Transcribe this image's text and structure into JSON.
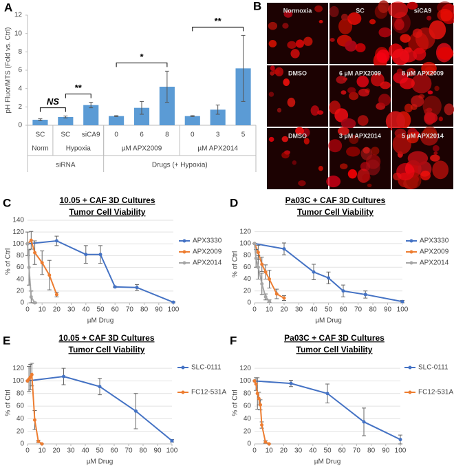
{
  "panel_labels": [
    "A",
    "B",
    "C",
    "D",
    "E",
    "F"
  ],
  "panel_b": {
    "labels": [
      "Normoxia",
      "SC",
      "siCA9",
      "DMSO",
      "6 µM APX2009",
      "8 µM APX2009",
      "DMSO",
      "3 µM APX2014",
      "5 µM APX2014"
    ]
  },
  "chart_data": [
    {
      "type": "bar",
      "y_label": "pH Fluor/MTS (Fold vs. Ctrl)",
      "categories": [
        "SC",
        "SC",
        "siCA9",
        "0",
        "6",
        "8",
        "0",
        "3",
        "5"
      ],
      "values": [
        0.6,
        0.9,
        2.2,
        1.0,
        1.9,
        4.2,
        1.0,
        1.7,
        6.2
      ],
      "errors": [
        0.1,
        0.1,
        0.3,
        0.05,
        0.7,
        1.7,
        0.05,
        0.5,
        3.6
      ],
      "color": "#5b9bd5",
      "ylim": [
        0,
        12
      ],
      "yticks": [
        0,
        2,
        4,
        6,
        8,
        10,
        12
      ],
      "grid": false,
      "groups": [
        {
          "label": "Norm",
          "span": 1
        },
        {
          "label": "Hypoxia",
          "span": 2
        },
        {
          "label": "µM APX2009",
          "span": 3
        },
        {
          "label": "µM APX2014",
          "span": 3
        }
      ],
      "super_groups": [
        {
          "label": "siRNA",
          "span": 3
        },
        {
          "label": "Drugs (+ Hypoxia)",
          "span": 6
        }
      ],
      "annotations": [
        {
          "text": "NS",
          "from": 0,
          "to": 1
        },
        {
          "text": "**",
          "from": 1,
          "to": 2
        },
        {
          "text": "*",
          "from": 3,
          "to": 5
        },
        {
          "text": "**",
          "from": 6,
          "to": 8
        }
      ]
    },
    {
      "type": "line",
      "title": "10.05 + CAF 3D Cultures",
      "subtitle": "Tumor Cell Viability",
      "x_label": "µM Drug",
      "y_label": "% of Ctrl",
      "xlim": [
        0,
        100
      ],
      "xticks": [
        0,
        10,
        20,
        30,
        40,
        50,
        60,
        70,
        80,
        90,
        100
      ],
      "ylim": [
        0,
        140
      ],
      "yticks": [
        0,
        20,
        40,
        60,
        80,
        100,
        120,
        140
      ],
      "grid": true,
      "legend": "upper right",
      "series": [
        {
          "name": "APX3330",
          "color": "#4472c4",
          "x": [
            0,
            20,
            40,
            50,
            60,
            75,
            100
          ],
          "values": [
            100,
            105,
            82,
            82,
            27,
            26,
            1
          ],
          "errors": [
            20,
            8,
            15,
            15,
            1,
            5,
            1
          ]
        },
        {
          "name": "APX2009",
          "color": "#ed7d31",
          "x": [
            0,
            2.5,
            5,
            10,
            15,
            20
          ],
          "values": [
            100,
            106,
            85,
            68,
            47,
            14
          ],
          "errors": [
            0,
            15,
            20,
            20,
            25,
            4
          ]
        },
        {
          "name": "APX2014",
          "color": "#a5a5a5",
          "x": [
            0,
            1,
            2.5,
            5
          ],
          "values": [
            100,
            60,
            10,
            0
          ],
          "errors": [
            0,
            30,
            10,
            1
          ]
        }
      ]
    },
    {
      "type": "line",
      "title": "Pa03C + CAF 3D Cultures",
      "subtitle": "Tumor Cell Viability",
      "x_label": "µM Drug",
      "y_label": "% of Ctrl",
      "xlim": [
        0,
        100
      ],
      "xticks": [
        0,
        10,
        20,
        30,
        40,
        50,
        60,
        70,
        80,
        90,
        100
      ],
      "ylim": [
        0,
        130
      ],
      "yticks": [
        0,
        20,
        40,
        60,
        80,
        100,
        120
      ],
      "grid": true,
      "legend": "upper right",
      "series": [
        {
          "name": "APX3330",
          "color": "#4472c4",
          "x": [
            0,
            20,
            40,
            50,
            60,
            75,
            100
          ],
          "values": [
            100,
            91,
            52,
            42,
            20,
            14,
            2
          ],
          "errors": [
            0,
            10,
            13,
            10,
            10,
            6,
            2
          ]
        },
        {
          "name": "APX2009",
          "color": "#ed7d31",
          "x": [
            0,
            2.5,
            5,
            7.5,
            10,
            15,
            20
          ],
          "values": [
            100,
            85,
            65,
            52,
            40,
            15,
            8
          ],
          "errors": [
            0,
            12,
            12,
            12,
            15,
            8,
            4
          ]
        },
        {
          "name": "APX2014",
          "color": "#a5a5a5",
          "x": [
            0,
            1,
            2.5,
            5,
            7.5,
            10
          ],
          "values": [
            100,
            75,
            60,
            32,
            10,
            3
          ],
          "errors": [
            0,
            15,
            20,
            18,
            5,
            2
          ]
        }
      ]
    },
    {
      "type": "line",
      "title": "10.05 + CAF 3D Cultures",
      "subtitle": "Tumor Cell Viability",
      "x_label": "µM Drug",
      "y_label": "% of Ctrl",
      "xlim": [
        0,
        100
      ],
      "xticks": [
        0,
        10,
        20,
        30,
        40,
        50,
        60,
        70,
        80,
        90,
        100
      ],
      "ylim": [
        0,
        130
      ],
      "yticks": [
        0,
        20,
        40,
        60,
        80,
        100,
        120
      ],
      "grid": true,
      "legend": "right",
      "series": [
        {
          "name": "SLC-0111",
          "color": "#4472c4",
          "x": [
            0,
            25,
            50,
            75,
            100
          ],
          "values": [
            100,
            107,
            91,
            52,
            5
          ],
          "errors": [
            0,
            13,
            13,
            28,
            2
          ]
        },
        {
          "name": "FC12-531A",
          "color": "#ed7d31",
          "x": [
            0,
            1,
            2,
            3,
            5,
            7.5,
            10
          ],
          "values": [
            100,
            103,
            106,
            110,
            38,
            4,
            0
          ],
          "errors": [
            0,
            20,
            20,
            18,
            15,
            2,
            0
          ]
        }
      ]
    },
    {
      "type": "line",
      "title": "Pa03C + CAF 3D Cultures",
      "subtitle": "Tumor Cell Viability",
      "x_label": "µM Drug",
      "y_label": "% of Ctrl",
      "xlim": [
        0,
        100
      ],
      "xticks": [
        0,
        10,
        20,
        30,
        40,
        50,
        60,
        70,
        80,
        90,
        100
      ],
      "ylim": [
        0,
        130
      ],
      "yticks": [
        0,
        20,
        40,
        60,
        80,
        100,
        120
      ],
      "grid": true,
      "legend": "right",
      "series": [
        {
          "name": "SLC-0111",
          "color": "#4472c4",
          "x": [
            0,
            25,
            50,
            75,
            100
          ],
          "values": [
            100,
            96,
            80,
            35,
            7
          ],
          "errors": [
            0,
            5,
            15,
            22,
            7
          ]
        },
        {
          "name": "FC12-531A",
          "color": "#ed7d31",
          "x": [
            0,
            1,
            2,
            3,
            4,
            5,
            7.5,
            10
          ],
          "values": [
            100,
            95,
            80,
            72,
            62,
            30,
            3,
            0
          ],
          "errors": [
            0,
            10,
            25,
            10,
            8,
            5,
            2,
            0
          ]
        }
      ]
    }
  ]
}
